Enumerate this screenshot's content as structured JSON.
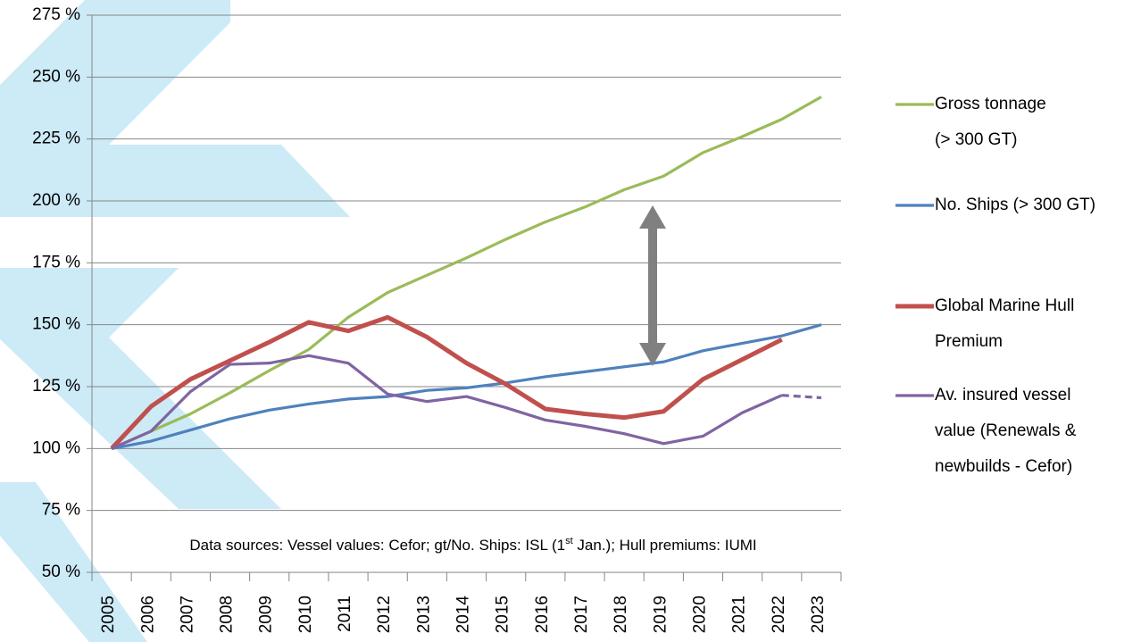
{
  "chart_data": {
    "type": "line",
    "categories": [
      "2005",
      "2006",
      "2007",
      "2008",
      "2009",
      "2010",
      "2011",
      "2012",
      "2013",
      "2014",
      "2015",
      "2016",
      "2017",
      "2018",
      "2019",
      "2020",
      "2021",
      "2022",
      "2023"
    ],
    "series": [
      {
        "name": "Gross tonnage (> 300 GT)",
        "color": "#9bbb59",
        "values": [
          100,
          107,
          114,
          122.5,
          131.5,
          140,
          153,
          163,
          170,
          177,
          184.5,
          191.5,
          197.5,
          204.5,
          210,
          219.5,
          226,
          233,
          242
        ]
      },
      {
        "name": "No. Ships (> 300 GT)",
        "color": "#4f81bd",
        "values": [
          100,
          103,
          107.5,
          112,
          115.5,
          118,
          120,
          121,
          123.5,
          124.5,
          126.5,
          129,
          131,
          133,
          135,
          139.5,
          142.5,
          145.5,
          150
        ]
      },
      {
        "name": "Global Marine Hull Premium",
        "color": "#c0504d",
        "values": [
          100,
          117,
          128,
          135.5,
          143,
          151,
          147.5,
          153,
          145,
          134.5,
          126,
          116,
          114,
          112.5,
          115,
          128,
          136,
          144,
          null
        ]
      },
      {
        "name": "Av. insured vessel value (Renewals & newbuilds - Cefor)",
        "color": "#8064a2",
        "values": [
          100,
          107,
          123,
          134,
          134.5,
          137.5,
          134.5,
          122,
          119,
          121,
          116.5,
          111.5,
          109,
          106,
          102,
          105,
          114.5,
          121.5,
          120.5
        ],
        "dash_last": true
      }
    ],
    "ylim": [
      50,
      275
    ],
    "yticks": [
      {
        "value": 50,
        "label": "50 %"
      },
      {
        "value": 75,
        "label": "75 %"
      },
      {
        "value": 100,
        "label": "100 %"
      },
      {
        "value": 125,
        "label": "125 %"
      },
      {
        "value": 150,
        "label": "150 %"
      },
      {
        "value": 175,
        "label": "175 %"
      },
      {
        "value": 200,
        "label": "200 %"
      },
      {
        "value": 225,
        "label": "225 %"
      },
      {
        "value": 250,
        "label": "250 %"
      },
      {
        "value": 275,
        "label": "275 %"
      }
    ],
    "grid": true,
    "legend": "right",
    "annotation": [
      "Data sources: Vessel values: Cefor; gt/No. Ships: ISL (1",
      "st",
      " Jan.); Hull premiums: IUMI"
    ]
  }
}
